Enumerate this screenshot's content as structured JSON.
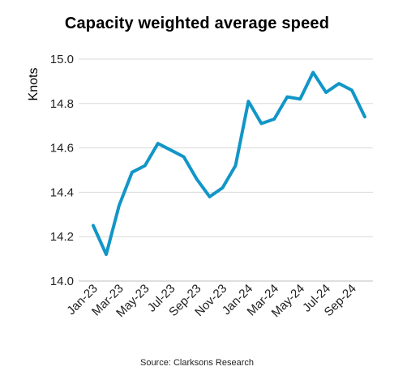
{
  "chart_data": {
    "type": "line",
    "title": "Capacity weighted average speed",
    "ylabel": "Knots",
    "xlabel": "",
    "source": "Source: Clarksons Research",
    "ylim": [
      14.0,
      15.0
    ],
    "yticks": [
      "14.0",
      "14.2",
      "14.4",
      "14.6",
      "14.8",
      "15.0"
    ],
    "grid": true,
    "line_color": "#1196c7",
    "grid_color": "#d9d9d9",
    "x": [
      "Jan-23",
      "Feb-23",
      "Mar-23",
      "Apr-23",
      "May-23",
      "Jun-23",
      "Jul-23",
      "Aug-23",
      "Sep-23",
      "Oct-23",
      "Nov-23",
      "Dec-23",
      "Jan-24",
      "Feb-24",
      "Mar-24",
      "Apr-24",
      "May-24",
      "Jun-24",
      "Jul-24",
      "Aug-24",
      "Sep-24",
      "Oct-24"
    ],
    "xtick_labels": [
      "Jan-23",
      "Mar-23",
      "May-23",
      "Jul-23",
      "Sep-23",
      "Nov-23",
      "Jan-24",
      "Mar-24",
      "May-24",
      "Jul-24",
      "Sep-24"
    ],
    "series": [
      {
        "values": [
          14.25,
          14.12,
          14.34,
          14.49,
          14.52,
          14.62,
          14.59,
          14.56,
          14.46,
          14.38,
          14.42,
          14.52,
          14.81,
          14.71,
          14.73,
          14.83,
          14.82,
          14.94,
          14.85,
          14.89,
          14.86,
          14.74
        ]
      }
    ]
  }
}
